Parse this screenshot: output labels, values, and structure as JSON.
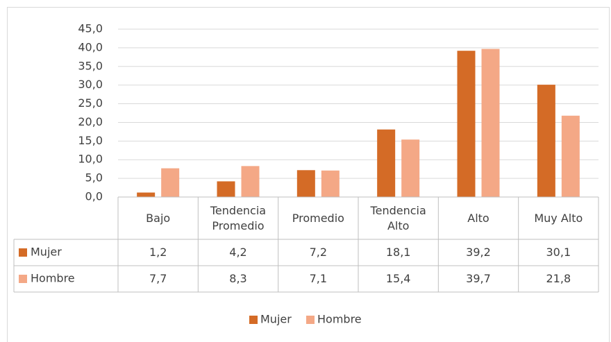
{
  "chart_data": {
    "type": "bar",
    "categories": [
      "Bajo",
      "Tendencia Promedio",
      "Promedio",
      "Tendencia Alto",
      "Alto",
      "Muy Alto"
    ],
    "series": [
      {
        "name": "Mujer",
        "color": "#d46b26",
        "values": [
          1.2,
          4.2,
          7.2,
          18.1,
          39.2,
          30.1
        ],
        "value_labels": [
          "1,2",
          "4,2",
          "7,2",
          "18,1",
          "39,2",
          "30,1"
        ]
      },
      {
        "name": "Hombre",
        "color": "#f4a886",
        "values": [
          7.7,
          8.3,
          7.1,
          15.4,
          39.7,
          21.8
        ],
        "value_labels": [
          "7,7",
          "8,3",
          "7,1",
          "15,4",
          "39,7",
          "21,8"
        ]
      }
    ],
    "ylim": [
      0,
      45
    ],
    "yticks": [
      {
        "value": 0,
        "label": "0,0"
      },
      {
        "value": 5,
        "label": "5,0"
      },
      {
        "value": 10,
        "label": "10,0"
      },
      {
        "value": 15,
        "label": "15,0"
      },
      {
        "value": 20,
        "label": "20,0"
      },
      {
        "value": 25,
        "label": "25,0"
      },
      {
        "value": 30,
        "label": "30,0"
      },
      {
        "value": 35,
        "label": "35,0"
      },
      {
        "value": 40,
        "label": "40,0"
      },
      {
        "value": 45,
        "label": "45,0"
      }
    ],
    "grid": true,
    "legend": "bottom"
  }
}
